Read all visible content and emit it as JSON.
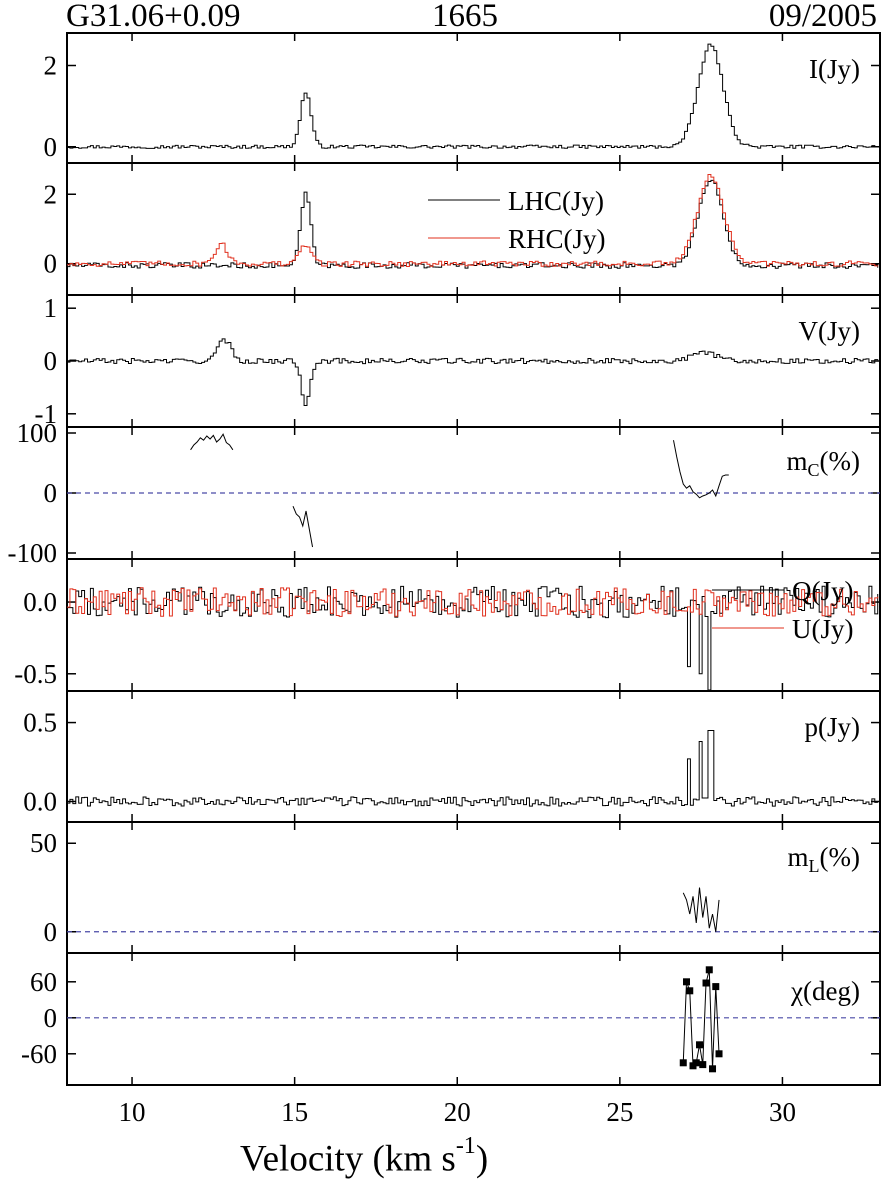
{
  "header": {
    "source": "G31.06+0.09",
    "frequency": "1665",
    "date": "09/2005"
  },
  "xaxis": {
    "label_main": "Velocity (km s",
    "label_sup": "-1",
    "label_end": ")",
    "range": [
      8,
      33
    ],
    "ticks": [
      10,
      15,
      20,
      25,
      30
    ]
  },
  "colors": {
    "black": "#000000",
    "red": "#e0301e",
    "dash": "#4a4aa6"
  },
  "chart_data": [
    {
      "id": "I",
      "type": "line",
      "label": "I(Jy)",
      "ylim": [
        -0.4,
        2.8
      ],
      "ticks": [
        "0",
        "2"
      ],
      "tick_values": [
        0,
        2
      ],
      "series": [
        {
          "color": "black",
          "noise": 0.04,
          "base": 0.0,
          "peaks": [
            {
              "x": 15.3,
              "h": 1.35,
              "w": 0.16
            },
            {
              "x": 27.75,
              "h": 2.5,
              "w": 0.38
            }
          ]
        }
      ]
    },
    {
      "id": "LR",
      "type": "line",
      "ylim": [
        -0.9,
        2.9
      ],
      "ticks": [
        "0",
        "2"
      ],
      "tick_values": [
        0,
        2
      ],
      "legend": [
        "LHC(Jy)",
        "RHC(Jy)"
      ],
      "series": [
        {
          "name": "LHC(Jy)",
          "color": "black",
          "noise": 0.08,
          "base": -0.05,
          "peaks": [
            {
              "x": 15.3,
              "h": 2.1,
              "w": 0.15
            },
            {
              "x": 27.75,
              "h": 2.45,
              "w": 0.38
            }
          ]
        },
        {
          "name": "RHC(Jy)",
          "color": "red",
          "noise": 0.08,
          "base": 0.0,
          "peaks": [
            {
              "x": 12.7,
              "h": 0.55,
              "w": 0.2
            },
            {
              "x": 15.3,
              "h": 0.55,
              "w": 0.18
            },
            {
              "x": 27.75,
              "h": 2.55,
              "w": 0.4
            }
          ]
        }
      ]
    },
    {
      "id": "V",
      "type": "line",
      "label": "V(Jy)",
      "ylim": [
        -1.25,
        1.25
      ],
      "ticks": [
        "1",
        "0",
        "-1"
      ],
      "tick_values": [
        1,
        0,
        -1
      ],
      "series": [
        {
          "color": "black",
          "noise": 0.05,
          "base": 0.0,
          "peaks": [
            {
              "x": 12.8,
              "h": 0.4,
              "w": 0.2
            },
            {
              "x": 15.3,
              "h": -0.8,
              "w": 0.13
            },
            {
              "x": 27.6,
              "h": 0.15,
              "w": 0.4
            }
          ]
        }
      ]
    },
    {
      "id": "mc",
      "type": "line",
      "label": "m",
      "label_sub": "C",
      "label_end": "(%)",
      "ylim": [
        -110,
        110
      ],
      "ticks": [
        "100",
        "0",
        "-100"
      ],
      "tick_values": [
        100,
        0,
        -100
      ],
      "dashed_zero": true,
      "segments": [
        {
          "x": [
            11.8,
            11.9,
            12.0,
            12.1,
            12.2,
            12.3,
            12.4,
            12.5,
            12.6,
            12.7,
            12.8,
            12.9,
            13.0,
            13.1
          ],
          "y": [
            72,
            80,
            85,
            92,
            88,
            95,
            90,
            96,
            85,
            90,
            98,
            84,
            80,
            72
          ]
        },
        {
          "x": [
            14.95,
            15.05,
            15.15,
            15.25,
            15.35,
            15.45,
            15.55
          ],
          "y": [
            -22,
            -35,
            -40,
            -55,
            -30,
            -60,
            -90
          ]
        },
        {
          "x": [
            26.65,
            26.75,
            26.85,
            26.95,
            27.05,
            27.15,
            27.25,
            27.35,
            27.45,
            27.55,
            27.65,
            27.75,
            27.85,
            27.95,
            28.05,
            28.15,
            28.25,
            28.35
          ],
          "y": [
            88,
            60,
            35,
            15,
            8,
            12,
            2,
            -2,
            -8,
            -5,
            -3,
            0,
            5,
            -5,
            12,
            28,
            30,
            30
          ]
        }
      ]
    },
    {
      "id": "QU",
      "type": "line",
      "ylim": [
        -0.62,
        0.3
      ],
      "ticks": [
        "0.0",
        "-0.5"
      ],
      "tick_values": [
        0,
        -0.5
      ],
      "legend": [
        "Q(Jy)",
        "U(Jy)"
      ],
      "series": [
        {
          "name": "Q(Jy)",
          "color": "black",
          "noise": 0.11,
          "base": 0.0,
          "spikes": [
            {
              "x": 27.1,
              "h": -0.45
            },
            {
              "x": 27.4,
              "h": -0.5
            },
            {
              "x": 27.7,
              "h": -0.62
            }
          ]
        },
        {
          "name": "U(Jy)",
          "color": "red",
          "noise": 0.1,
          "base": 0.0,
          "spikes": []
        }
      ]
    },
    {
      "id": "p",
      "type": "line",
      "label": "p(Jy)",
      "ylim": [
        -0.13,
        0.7
      ],
      "ticks": [
        "0.5",
        "0.0"
      ],
      "tick_values": [
        0.5,
        0
      ],
      "series": [
        {
          "color": "black",
          "noise": 0.06,
          "base": 0.0,
          "abs": true,
          "spikes": [
            {
              "x": 27.1,
              "h": 0.3
            },
            {
              "x": 27.4,
              "h": 0.41
            },
            {
              "x": 27.75,
              "h": 0.48
            }
          ]
        }
      ]
    },
    {
      "id": "mL",
      "type": "line",
      "label": "m",
      "label_sub": "L",
      "label_end": "(%)",
      "ylim": [
        -12,
        62
      ],
      "ticks": [
        "50",
        "0"
      ],
      "tick_values": [
        50,
        0
      ],
      "dashed_zero": true,
      "segments": [
        {
          "x": [
            26.95,
            27.05,
            27.15,
            27.25,
            27.35,
            27.45,
            27.55,
            27.65,
            27.75,
            27.85,
            27.95,
            28.05
          ],
          "y": [
            22,
            18,
            10,
            20,
            5,
            25,
            8,
            20,
            2,
            10,
            0,
            18
          ]
        }
      ]
    },
    {
      "id": "chi",
      "type": "scatter",
      "label": "χ(deg)",
      "ylim": [
        -112,
        108
      ],
      "ticks": [
        "60",
        "0",
        "-60"
      ],
      "tick_values": [
        60,
        0,
        -60
      ],
      "dashed_zero": true,
      "segments": [
        {
          "x": [
            26.95,
            27.05,
            27.15,
            27.25,
            27.35,
            27.45,
            27.55,
            27.65,
            27.75,
            27.85,
            27.95,
            28.05
          ],
          "y": [
            -75,
            60,
            45,
            -80,
            -75,
            -45,
            -78,
            58,
            80,
            -85,
            52,
            -60
          ],
          "markers": true
        }
      ]
    }
  ]
}
